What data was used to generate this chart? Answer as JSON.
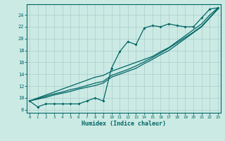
{
  "xlabel": "Humidex (Indice chaleur)",
  "bg_color": "#cceae4",
  "grid_color": "#aacccc",
  "line_color": "#006666",
  "x_data": [
    0,
    1,
    2,
    3,
    4,
    5,
    6,
    7,
    8,
    9,
    10,
    11,
    12,
    13,
    14,
    15,
    16,
    17,
    18,
    19,
    20,
    21,
    22,
    23
  ],
  "jagged_y": [
    9.5,
    8.5,
    9.0,
    9.0,
    9.0,
    9.0,
    9.0,
    9.5,
    10.0,
    9.5,
    15.0,
    17.8,
    19.5,
    19.0,
    21.8,
    22.2,
    22.0,
    22.5,
    22.2,
    22.0,
    22.0,
    23.5,
    25.0,
    25.2
  ],
  "diag1_y": [
    9.5,
    9.8,
    10.1,
    10.5,
    10.8,
    11.1,
    11.5,
    11.8,
    12.1,
    12.5,
    13.5,
    14.0,
    14.5,
    15.0,
    15.8,
    16.5,
    17.3,
    18.0,
    19.0,
    20.0,
    21.0,
    22.0,
    23.5,
    25.0
  ],
  "diag2_y": [
    9.5,
    9.9,
    10.3,
    10.7,
    11.0,
    11.4,
    11.7,
    12.1,
    12.5,
    12.8,
    13.8,
    14.3,
    14.8,
    15.4,
    16.1,
    16.8,
    17.6,
    18.4,
    19.3,
    20.2,
    21.1,
    22.1,
    23.6,
    25.1
  ],
  "diag3_y": [
    9.5,
    10.0,
    10.5,
    11.0,
    11.5,
    12.0,
    12.5,
    13.0,
    13.5,
    13.8,
    14.5,
    15.0,
    15.5,
    16.0,
    16.5,
    17.0,
    17.8,
    18.5,
    19.5,
    20.5,
    21.5,
    22.5,
    24.0,
    25.2
  ],
  "xlim": [
    -0.3,
    23.3
  ],
  "ylim": [
    7.5,
    25.8
  ],
  "yticks": [
    8,
    10,
    12,
    14,
    16,
    18,
    20,
    22,
    24
  ],
  "xticks": [
    0,
    1,
    2,
    3,
    4,
    5,
    6,
    7,
    8,
    9,
    10,
    11,
    12,
    13,
    14,
    15,
    16,
    17,
    18,
    19,
    20,
    21,
    22,
    23
  ]
}
